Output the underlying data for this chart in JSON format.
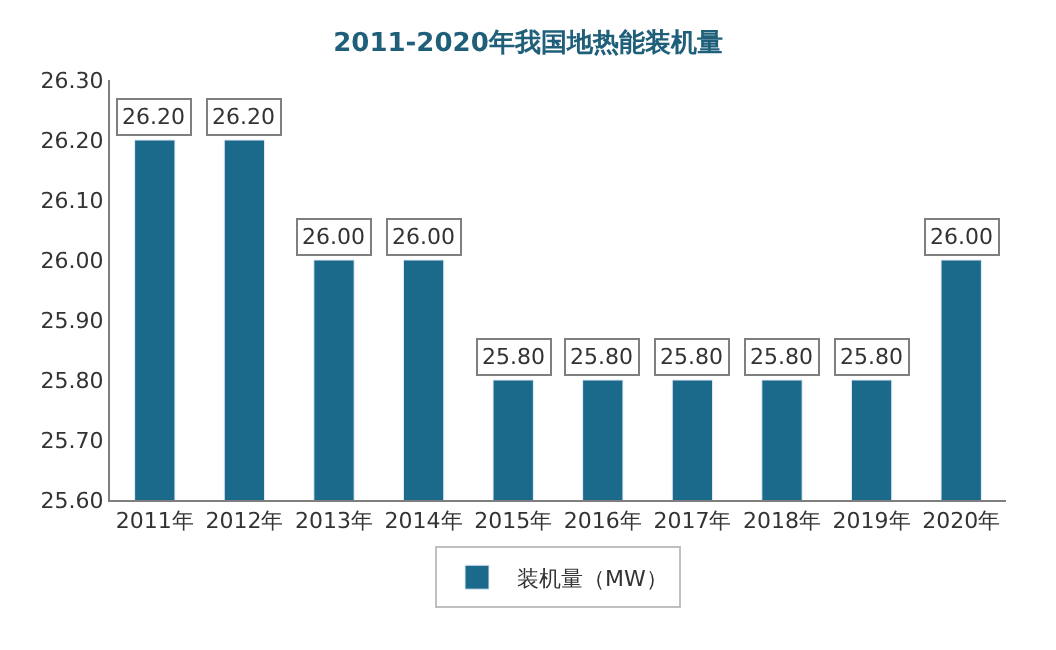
{
  "chart_data": {
    "type": "bar",
    "title": "2011-2020年我国地热能装机量",
    "categories": [
      "2011年",
      "2012年",
      "2013年",
      "2014年",
      "2015年",
      "2016年",
      "2017年",
      "2018年",
      "2019年",
      "2020年"
    ],
    "series": [
      {
        "name": "装机量（MW）",
        "color": "#1b6a8c",
        "values": [
          26.2,
          26.2,
          26.0,
          26.0,
          25.8,
          25.8,
          25.8,
          25.8,
          25.8,
          26.0
        ],
        "value_labels": [
          "26.20",
          "26.20",
          "26.00",
          "26.00",
          "25.80",
          "25.80",
          "25.80",
          "25.80",
          "25.80",
          "26.00"
        ]
      }
    ],
    "ylim": [
      25.6,
      26.3
    ],
    "yticks": [
      {
        "value": 25.6,
        "label": "25.60"
      },
      {
        "value": 25.7,
        "label": "25.70"
      },
      {
        "value": 25.8,
        "label": "25.80"
      },
      {
        "value": 25.9,
        "label": "25.90"
      },
      {
        "value": 26.0,
        "label": "26.00"
      },
      {
        "value": 26.1,
        "label": "26.10"
      },
      {
        "value": 26.2,
        "label": "26.20"
      },
      {
        "value": 26.3,
        "label": "26.30"
      }
    ],
    "legend": "bottom"
  }
}
